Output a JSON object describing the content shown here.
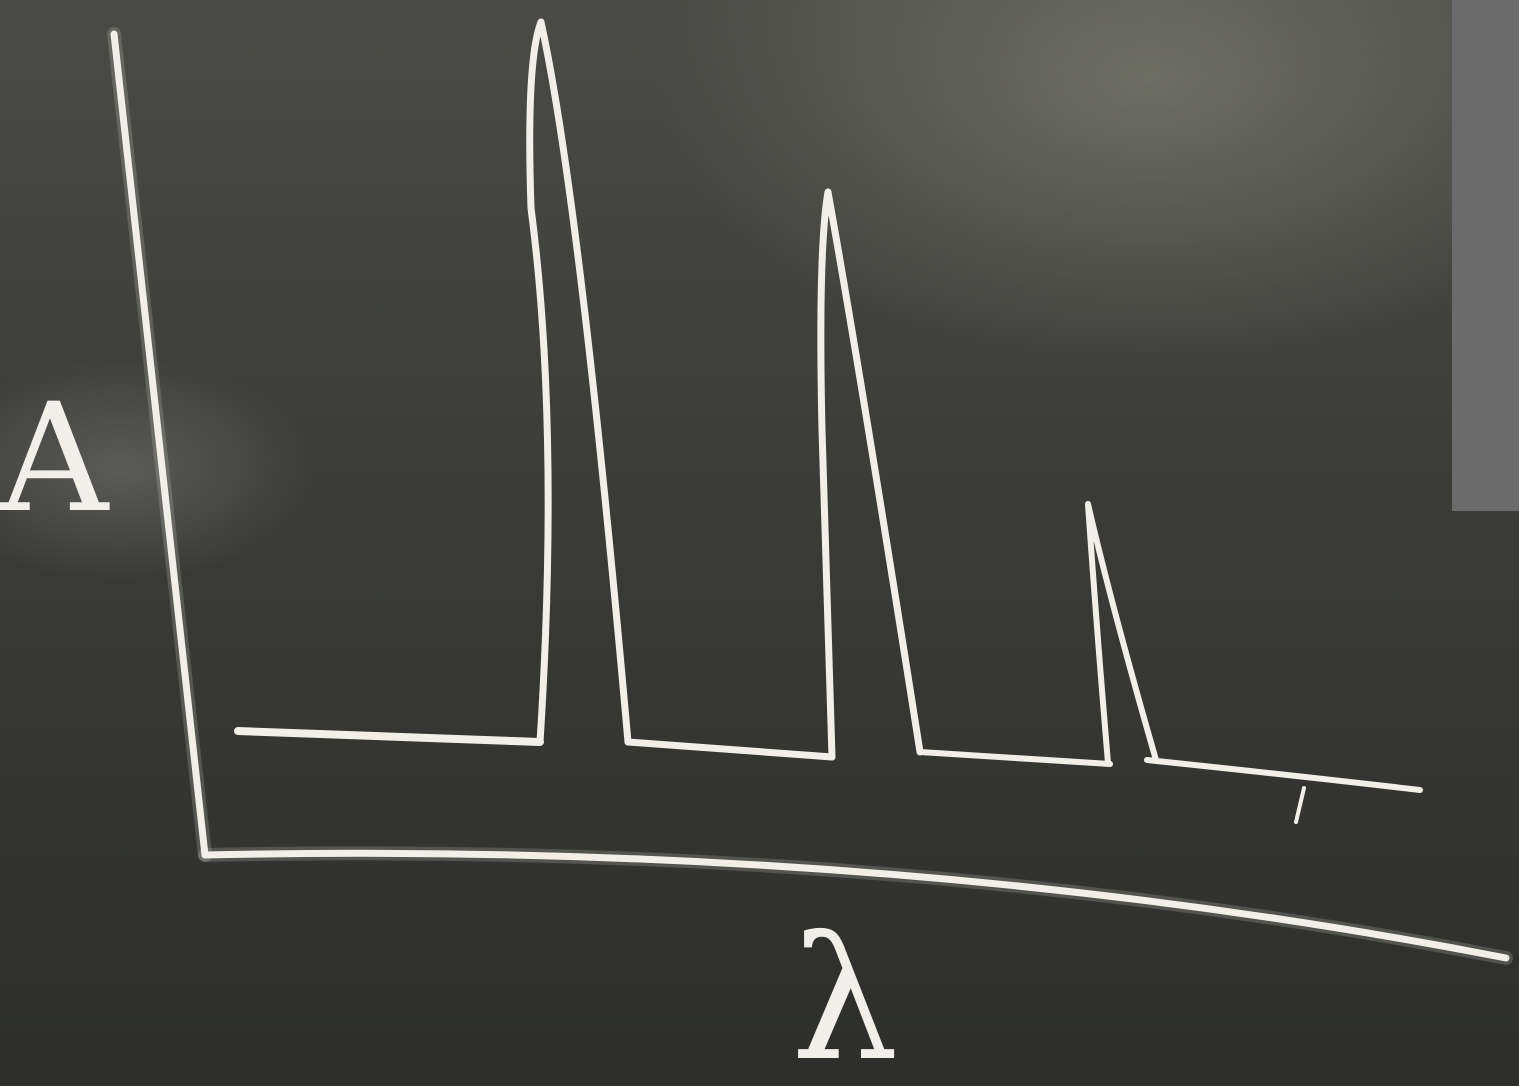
{
  "diagram": {
    "y_axis_label": "A",
    "x_axis_label": "λ",
    "peaks": [
      {
        "relative_height": 1.0
      },
      {
        "relative_height": 0.78
      },
      {
        "relative_height": 0.36
      }
    ]
  },
  "colors": {
    "board": "#3a3b38",
    "chalk": "#f1efe8",
    "panel": "#6b6b6b"
  }
}
